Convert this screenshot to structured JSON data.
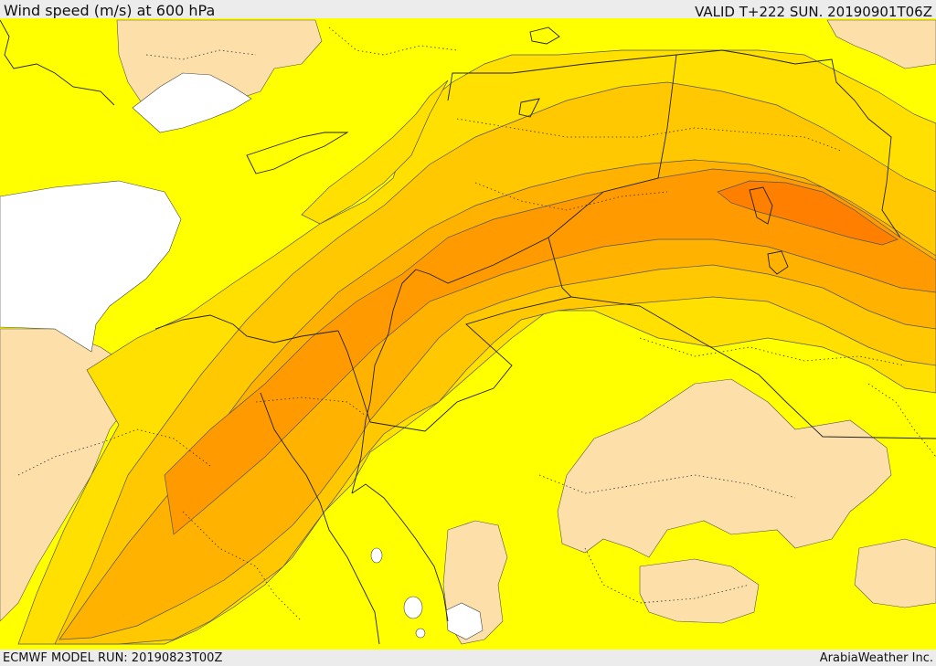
{
  "header": {
    "title": "Wind speed (m/s) at 600 hPa",
    "valid": "VALID T+222 SUN. 20190901T06Z"
  },
  "footer": {
    "model_run": "ECMWF MODEL RUN: 20190823T00Z",
    "credit": "ArabiaWeather Inc."
  },
  "map": {
    "colors": {
      "background": "#ffff00",
      "land_low": "#fde0a9",
      "level_1": "#ffe000",
      "level_2": "#ffc800",
      "level_3": "#ffb300",
      "level_4": "#ff9a00",
      "level_5": "#ff7f00",
      "unshaded": "#ffffff"
    }
  }
}
